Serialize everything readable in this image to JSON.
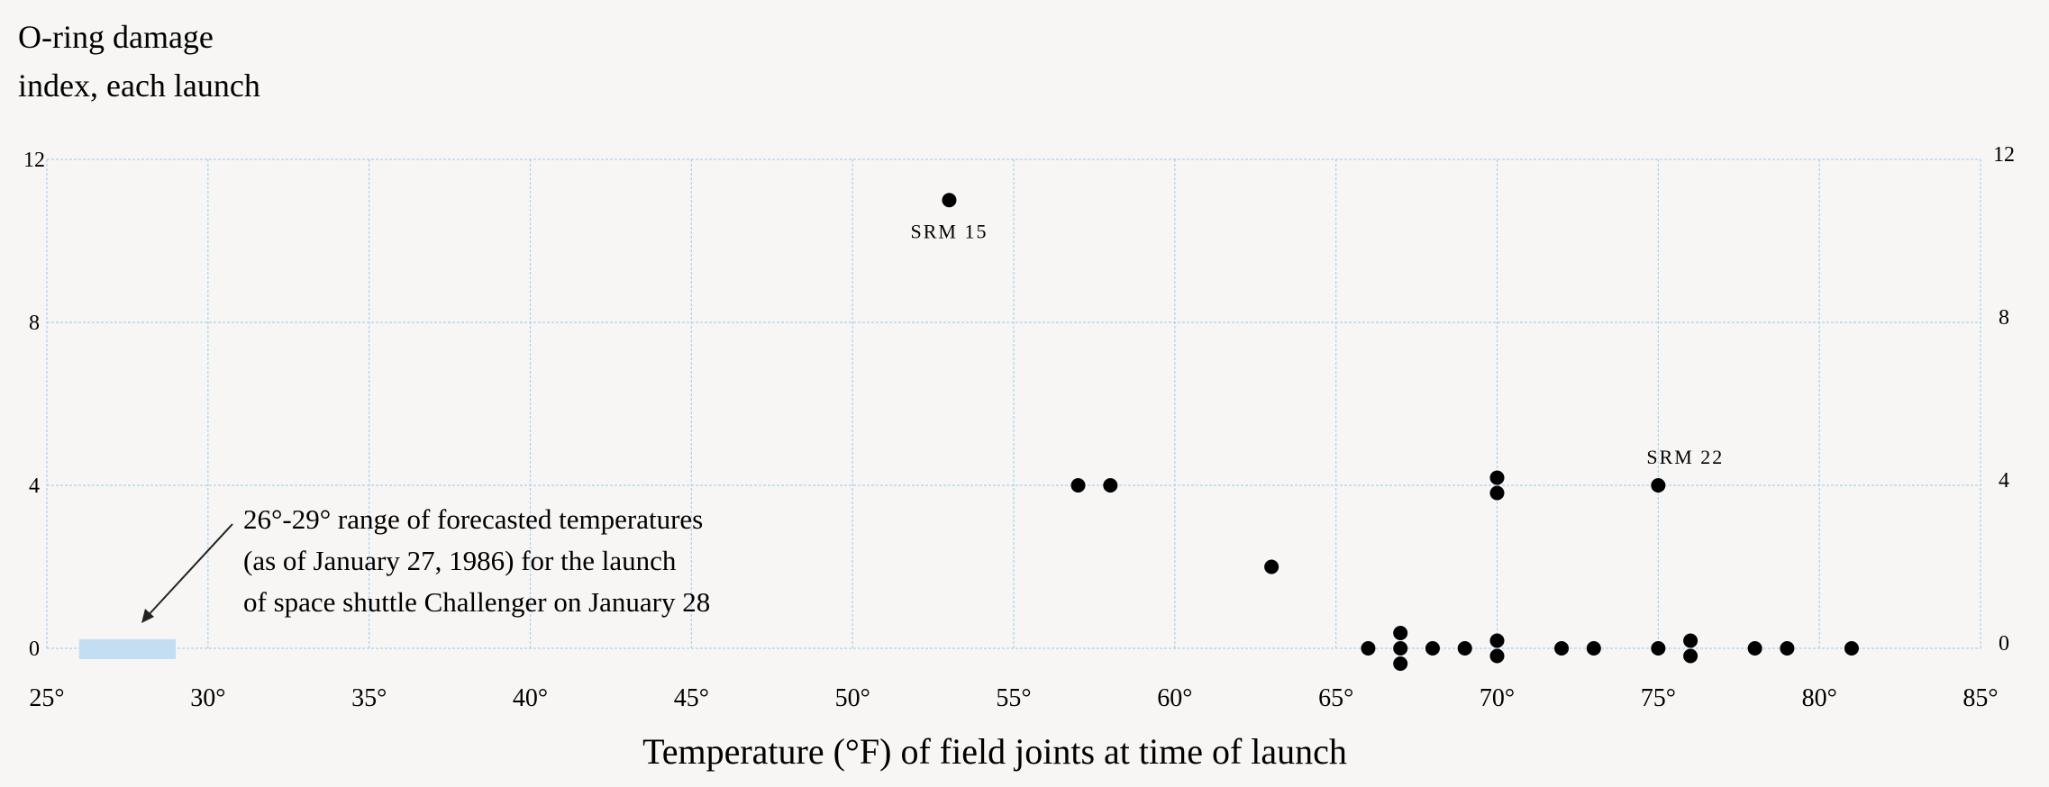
{
  "chart_data": {
    "type": "scatter",
    "title": "",
    "ylabel_lines": [
      "O-ring damage",
      "index, each launch"
    ],
    "xlabel": "Temperature (°F) of field joints at time of launch",
    "xlim": [
      25,
      85
    ],
    "ylim": [
      0,
      12
    ],
    "x_ticks": [
      25,
      30,
      35,
      40,
      45,
      50,
      55,
      60,
      65,
      70,
      75,
      80,
      85
    ],
    "x_tick_labels": [
      "25°",
      "30°",
      "35°",
      "40°",
      "45°",
      "50°",
      "55°",
      "60°",
      "65°",
      "70°",
      "75°",
      "80°",
      "85°"
    ],
    "y_ticks": [
      0,
      4,
      8,
      12
    ],
    "y_tick_labels": [
      "0",
      "4",
      "8",
      "12"
    ],
    "grid": true,
    "forecast_range": [
      26,
      29
    ],
    "annotation_lines": [
      "26°-29° range of forecasted temperatures",
      "(as of January 27, 1986) for the launch",
      "of space shuttle Challenger on January 28"
    ],
    "labeled_points": [
      {
        "label": "SRM 15",
        "x": 53,
        "y": 11
      },
      {
        "label": "SRM 22",
        "x": 75,
        "y": 4
      }
    ],
    "points": [
      {
        "x": 53,
        "y": 11
      },
      {
        "x": 57,
        "y": 4
      },
      {
        "x": 58,
        "y": 4
      },
      {
        "x": 63,
        "y": 2
      },
      {
        "x": 66,
        "y": 0
      },
      {
        "x": 67,
        "y": 0
      },
      {
        "x": 67,
        "y": 0
      },
      {
        "x": 67,
        "y": 0
      },
      {
        "x": 68,
        "y": 0
      },
      {
        "x": 69,
        "y": 0
      },
      {
        "x": 70,
        "y": 4
      },
      {
        "x": 70,
        "y": 4
      },
      {
        "x": 70,
        "y": 0
      },
      {
        "x": 70,
        "y": 0
      },
      {
        "x": 72,
        "y": 0
      },
      {
        "x": 73,
        "y": 0
      },
      {
        "x": 75,
        "y": 4
      },
      {
        "x": 75,
        "y": 0
      },
      {
        "x": 76,
        "y": 0
      },
      {
        "x": 76,
        "y": 0
      },
      {
        "x": 78,
        "y": 0
      },
      {
        "x": 79,
        "y": 0
      },
      {
        "x": 81,
        "y": 0
      }
    ]
  }
}
